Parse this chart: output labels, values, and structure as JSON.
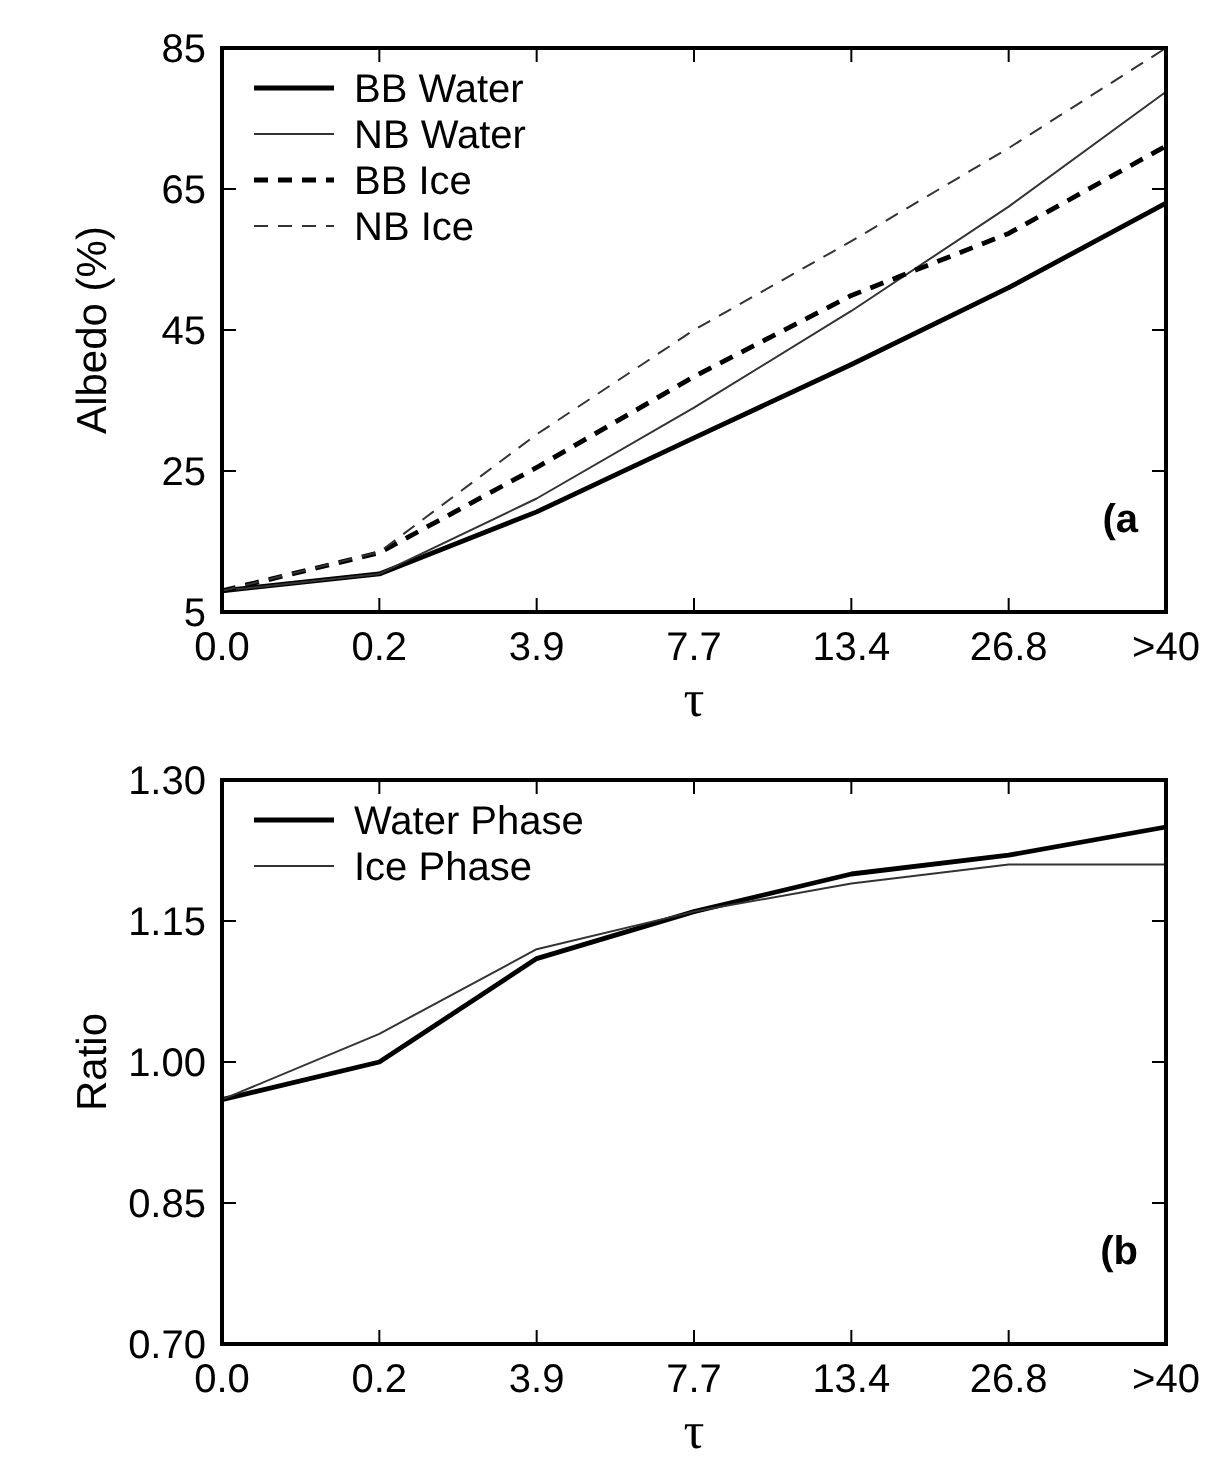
{
  "chart_data": [
    {
      "type": "line",
      "xlabel": "τ",
      "ylabel": "Albedo (%)",
      "categories": [
        "0.0",
        "0.2",
        "3.9",
        "7.7",
        "13.4",
        "26.8",
        ">40"
      ],
      "ylim": [
        5,
        85
      ],
      "yticks": [
        5,
        25,
        45,
        65,
        85
      ],
      "legend": "top left",
      "grid": false,
      "annotations": [
        "(a"
      ],
      "series": [
        {
          "name": "BB Water",
          "color": "#000000",
          "line_style": "solid",
          "values": [
            8.0,
            10.4,
            19.2,
            29.7,
            40.1,
            51.0,
            63.0
          ]
        },
        {
          "name": "NB Water",
          "color": "#333333",
          "line_style": "solid",
          "values": [
            8.0,
            10.4,
            21.1,
            34.0,
            47.7,
            62.5,
            78.8
          ]
        },
        {
          "name": "BB Ice",
          "color": "#000000",
          "line_style": "dashed",
          "values": [
            8.0,
            13.4,
            25.5,
            38.4,
            49.9,
            58.7,
            71.1
          ]
        },
        {
          "name": "NB Ice",
          "color": "#333333",
          "line_style": "dashed",
          "values": [
            8.0,
            13.5,
            30.2,
            45.0,
            57.6,
            70.8,
            85.0
          ]
        }
      ]
    },
    {
      "type": "line",
      "xlabel": "τ",
      "ylabel": "Ratio",
      "categories": [
        "0.0",
        "0.2",
        "3.9",
        "7.7",
        "13.4",
        "26.8",
        ">40"
      ],
      "ylim": [
        0.7,
        1.3
      ],
      "yticks": [
        {
          "value": 0.7,
          "label": "0.70"
        },
        {
          "value": 0.85,
          "label": "0.85"
        },
        {
          "value": 1.0,
          "label": "1.00"
        },
        {
          "value": 1.15,
          "label": "1.15"
        },
        {
          "value": 1.3,
          "label": "1.30"
        }
      ],
      "legend": "top left",
      "grid": false,
      "annotations": [
        "(b"
      ],
      "series": [
        {
          "name": "Water Phase",
          "color": "#000000",
          "line_style": "solid",
          "values": [
            0.96,
            1.0,
            1.11,
            1.16,
            1.2,
            1.22,
            1.25
          ]
        },
        {
          "name": "Ice Phase",
          "color": "#333333",
          "line_style": "solid",
          "values": [
            0.96,
            1.03,
            1.12,
            1.16,
            1.19,
            1.21,
            1.21
          ]
        }
      ]
    }
  ]
}
